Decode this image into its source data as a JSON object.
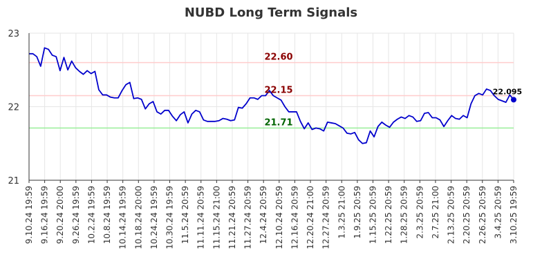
{
  "chart_data": {
    "type": "line",
    "title": "NUBD Long Term Signals",
    "xlabel": "",
    "ylabel": "",
    "ylim": [
      21,
      23
    ],
    "yticks": [
      "21",
      "22",
      "23"
    ],
    "grid": true,
    "x_tick_labels": [
      "9.10.24 19:59",
      "9.16.24 19:59",
      "9.20.24 20:00",
      "9.26.24 19:59",
      "10.2.24 19:59",
      "10.8.24 19:59",
      "10.14.24 19:59",
      "10.18.24 20:00",
      "10.24.24 19:59",
      "10.30.24 19:59",
      "11.5.24 20:59",
      "11.11.24 20:59",
      "11.15.24 21:00",
      "11.21.24 20:59",
      "11.27.24 20:59",
      "12.4.24 20:59",
      "12.10.24 20:59",
      "12.16.24 20:59",
      "12.20.24 21:00",
      "12.27.24 20:59",
      "1.3.25 21:00",
      "1.9.25 20:59",
      "1.15.25 20:59",
      "1.22.25 20:59",
      "1.28.25 20:59",
      "2.3.25 20:59",
      "2.7.25 21:00",
      "2.13.25 20:59",
      "2.20.25 20:59",
      "2.26.25 20:59",
      "3.4.25 20:59",
      "3.10.25 19:59"
    ],
    "series": [
      {
        "color": "#0000cc",
        "values": [
          22.72,
          22.72,
          22.68,
          22.55,
          22.8,
          22.78,
          22.7,
          22.68,
          22.49,
          22.67,
          22.5,
          22.62,
          22.53,
          22.48,
          22.44,
          22.49,
          22.45,
          22.48,
          22.23,
          22.16,
          22.16,
          22.13,
          22.12,
          22.12,
          22.22,
          22.3,
          22.33,
          22.11,
          22.12,
          22.1,
          21.97,
          22.04,
          22.07,
          21.93,
          21.9,
          21.95,
          21.95,
          21.87,
          21.81,
          21.89,
          21.93,
          21.78,
          21.9,
          21.95,
          21.93,
          21.82,
          21.8,
          21.8,
          21.8,
          21.81,
          21.84,
          21.83,
          21.81,
          21.82,
          21.99,
          21.98,
          22.04,
          22.12,
          22.12,
          22.1,
          22.15,
          22.15,
          22.22,
          22.15,
          22.12,
          22.09,
          22.0,
          21.93,
          21.93,
          21.93,
          21.8,
          21.7,
          21.78,
          21.69,
          21.71,
          21.7,
          21.67,
          21.79,
          21.78,
          21.77,
          21.74,
          21.71,
          21.64,
          21.63,
          21.65,
          21.55,
          21.5,
          21.51,
          21.67,
          21.59,
          21.73,
          21.79,
          21.75,
          21.72,
          21.79,
          21.83,
          21.86,
          21.84,
          21.88,
          21.86,
          21.8,
          21.81,
          21.91,
          21.92,
          21.85,
          21.85,
          21.82,
          21.73,
          21.81,
          21.88,
          21.84,
          21.83,
          21.88,
          21.85,
          22.04,
          22.15,
          22.18,
          22.16,
          22.24,
          22.22,
          22.15,
          22.1,
          22.08,
          22.06,
          22.16,
          22.095
        ]
      }
    ],
    "last_point_label": "22.095",
    "hlines": [
      {
        "value": 22.6,
        "label": "22.60",
        "line_color": "#ffcccc",
        "label_color": "#8b0000"
      },
      {
        "value": 22.15,
        "label": "22.15",
        "line_color": "#ffcccc",
        "label_color": "#8b0000"
      },
      {
        "value": 21.71,
        "label": "21.71",
        "line_color": "#99ee99",
        "label_color": "#006400"
      }
    ]
  }
}
